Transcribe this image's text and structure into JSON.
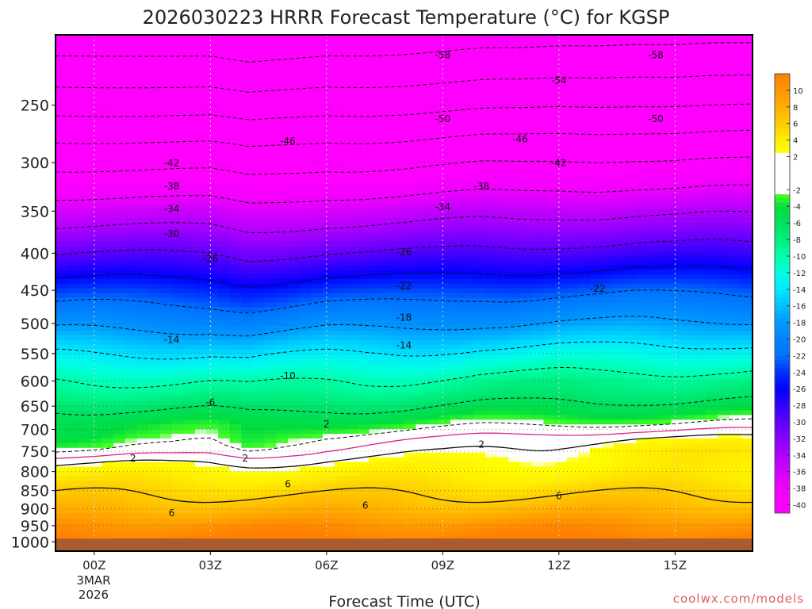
{
  "chart_data": {
    "type": "heatmap",
    "title": "2026030223 HRRR Forecast Temperature (°C) for KGSP",
    "xlabel": "Forecast Time (UTC)",
    "ylabel": "",
    "x_ticks": [
      {
        "hour": 0,
        "label": "00Z"
      },
      {
        "hour": 3,
        "label": "03Z"
      },
      {
        "hour": 6,
        "label": "06Z"
      },
      {
        "hour": 9,
        "label": "09Z"
      },
      {
        "hour": 12,
        "label": "12Z"
      },
      {
        "hour": 15,
        "label": "15Z"
      }
    ],
    "date_label": [
      "3MAR",
      "2026"
    ],
    "xlim": [
      -1,
      17
    ],
    "y_axis": {
      "scale": "log",
      "range": [
        1030,
        200
      ],
      "inverted": true,
      "ticks": [
        250,
        300,
        350,
        400,
        450,
        500,
        550,
        600,
        650,
        700,
        750,
        800,
        850,
        900,
        950,
        1000
      ]
    },
    "ground_pressure": 990,
    "grid": true,
    "colorbar": {
      "placement": "right",
      "range": [
        -41,
        12
      ],
      "tick_labels": [
        "10",
        "8",
        "6",
        "4",
        "2",
        "-2",
        "-4",
        "-6",
        "-8",
        "-10",
        "-12",
        "-14",
        "-16",
        "-18",
        "-20",
        "-22",
        "-24",
        "-26",
        "-28",
        "-30",
        "-32",
        "-34",
        "-36",
        "-38",
        "-40"
      ],
      "tick_values": [
        10,
        8,
        6,
        4,
        2,
        -2,
        -4,
        -6,
        -8,
        -10,
        -12,
        -14,
        -16,
        -18,
        -20,
        -22,
        -24,
        -26,
        -28,
        -30,
        -32,
        -34,
        -36,
        -38,
        -40
      ],
      "stops": [
        {
          "t": -41,
          "color": "#ff00ff"
        },
        {
          "t": -38,
          "color": "#f000ff"
        },
        {
          "t": -34,
          "color": "#b000ff"
        },
        {
          "t": -30,
          "color": "#6000ff"
        },
        {
          "t": -28,
          "color": "#3000ff"
        },
        {
          "t": -26,
          "color": "#0000ff"
        },
        {
          "t": -24,
          "color": "#0030ff"
        },
        {
          "t": -22,
          "color": "#0070ff"
        },
        {
          "t": -18,
          "color": "#0098ff"
        },
        {
          "t": -16,
          "color": "#00c0ff"
        },
        {
          "t": -14,
          "color": "#00e8ff"
        },
        {
          "t": -12,
          "color": "#00ffe0"
        },
        {
          "t": -10,
          "color": "#00ffaa"
        },
        {
          "t": -8,
          "color": "#00ee80"
        },
        {
          "t": -6,
          "color": "#00e060"
        },
        {
          "t": -4,
          "color": "#00dd40"
        },
        {
          "t": -2.6,
          "color": "#44ff22"
        },
        {
          "t": -2.5,
          "color": "#ffffff"
        },
        {
          "t": 2.4,
          "color": "#ffffff"
        },
        {
          "t": 2.5,
          "color": "#ffff00"
        },
        {
          "t": 4,
          "color": "#ffee00"
        },
        {
          "t": 6,
          "color": "#ffcc00"
        },
        {
          "t": 8,
          "color": "#ffb000"
        },
        {
          "t": 10,
          "color": "#ff9800"
        },
        {
          "t": 12,
          "color": "#ff8000"
        }
      ]
    },
    "temperature_field": {
      "hours": [
        -1,
        0,
        1,
        2,
        3,
        4,
        5,
        6,
        7,
        8,
        9,
        10,
        11,
        12,
        13,
        14,
        15,
        16,
        17
      ],
      "pressure_levels": [
        1000,
        975,
        950,
        925,
        900,
        875,
        850,
        825,
        800,
        775,
        750,
        725,
        700,
        675,
        650,
        625,
        600,
        575,
        550,
        525,
        500,
        475,
        450,
        425,
        400,
        375,
        350,
        325,
        300,
        275,
        250,
        225,
        200
      ],
      "temperature_profile": [
        12.5,
        11.5,
        10.5,
        9,
        7.5,
        6.5,
        5.5,
        4.5,
        3.5,
        2.5,
        1.0,
        -0.5,
        -2.5,
        -4.5,
        -6.5,
        -8.5,
        -10.0,
        -12.0,
        -14.0,
        -16.5,
        -19.0,
        -21.5,
        -24.0,
        -27.0,
        -30.0,
        -33.0,
        -36.0,
        -39.5,
        -43.0,
        -47.0,
        -51.5,
        -56.0,
        -60.5
      ],
      "warming_by_hour": [
        0,
        0,
        0,
        0,
        0,
        -0.8,
        -0.4,
        0,
        0,
        0.2,
        0.6,
        1.0,
        1.0,
        1.2,
        1.2,
        1.4,
        1.4,
        1.6,
        1.6
      ],
      "warm_layer_by_hour": [
        -3,
        -3,
        -2.5,
        -2.5,
        -2,
        -3,
        -1.5,
        -0.5,
        0,
        0.3,
        0.5,
        1.0,
        1.5,
        2.0,
        2.5,
        3.0,
        3.0,
        3.0,
        3.0
      ]
    },
    "dashed_contours": [
      -58,
      -54,
      -50,
      -46,
      -42,
      -38,
      -34,
      -30,
      -26,
      -22,
      -18,
      -14,
      -10,
      -6,
      -2
    ],
    "solid_contours": [
      2,
      6
    ],
    "freezing_line_color": "#e0208a",
    "contour_labels": [
      {
        "text": "-58",
        "hour": 9.0,
        "p": 213
      },
      {
        "text": "-58",
        "hour": 14.5,
        "p": 213
      },
      {
        "text": "-54",
        "hour": 12.0,
        "p": 231
      },
      {
        "text": "-50",
        "hour": 9.0,
        "p": 261
      },
      {
        "text": "-50",
        "hour": 14.5,
        "p": 261
      },
      {
        "text": "-46",
        "hour": 5.0,
        "p": 280
      },
      {
        "text": "-46",
        "hour": 11.0,
        "p": 278
      },
      {
        "text": "-42",
        "hour": 2.0,
        "p": 300
      },
      {
        "text": "-42",
        "hour": 12.0,
        "p": 300
      },
      {
        "text": "-38",
        "hour": 2.0,
        "p": 323
      },
      {
        "text": "-38",
        "hour": 10.0,
        "p": 323
      },
      {
        "text": "-34",
        "hour": 2.0,
        "p": 347
      },
      {
        "text": "-34",
        "hour": 9.0,
        "p": 345
      },
      {
        "text": "-30",
        "hour": 2.0,
        "p": 376
      },
      {
        "text": "-26",
        "hour": 3.0,
        "p": 407
      },
      {
        "text": "-26",
        "hour": 8.0,
        "p": 398
      },
      {
        "text": "-22",
        "hour": 8.0,
        "p": 443
      },
      {
        "text": "-22",
        "hour": 13.0,
        "p": 447
      },
      {
        "text": "-18",
        "hour": 8.0,
        "p": 490
      },
      {
        "text": "-14",
        "hour": 2.0,
        "p": 526
      },
      {
        "text": "-14",
        "hour": 8.0,
        "p": 535
      },
      {
        "text": "-10",
        "hour": 5.0,
        "p": 590
      },
      {
        "text": "-6",
        "hour": 3.0,
        "p": 642
      },
      {
        "text": "2",
        "hour": 6.0,
        "p": 688
      },
      {
        "text": "2",
        "hour": 1.0,
        "p": 766
      },
      {
        "text": "2",
        "hour": 3.9,
        "p": 766
      },
      {
        "text": "2",
        "hour": 10.0,
        "p": 733
      },
      {
        "text": "6",
        "hour": 5.0,
        "p": 832
      },
      {
        "text": "6",
        "hour": 12.0,
        "p": 864
      },
      {
        "text": "6",
        "hour": 2.0,
        "p": 912
      },
      {
        "text": "6",
        "hour": 7.0,
        "p": 890
      }
    ]
  },
  "footer": {
    "credit": "coolwx.com/models"
  },
  "colors": {
    "ground": "#a85c30",
    "credit": "#e06060",
    "axis": "#000000",
    "grid": "#bbbbbb"
  }
}
